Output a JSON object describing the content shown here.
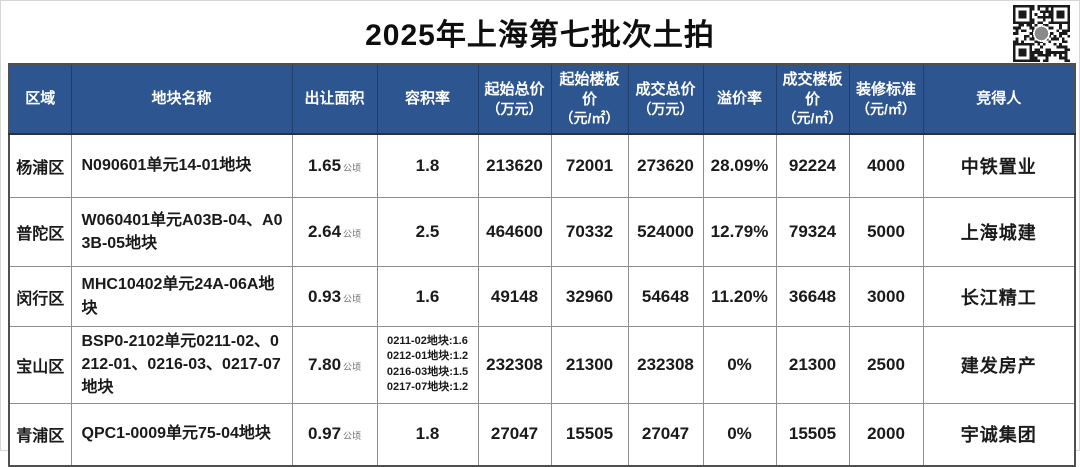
{
  "page_title": "2025年上海第七批次土拍",
  "colors": {
    "header_bg": "#2d5590",
    "header_text": "#ffffff",
    "title_text": "#0e0e0e",
    "border": "#8f8f8f"
  },
  "chart_data": {
    "type": "table",
    "title": "2025年上海第七批次土拍",
    "area_unit": "公顷",
    "columns": [
      {
        "label": "区域"
      },
      {
        "label": "地块名称"
      },
      {
        "label": "出让面积"
      },
      {
        "label": "容积率"
      },
      {
        "label": "起始总价",
        "unit": "（万元）"
      },
      {
        "label": "起始楼板价",
        "unit": "（元/㎡）"
      },
      {
        "label": "成交总价",
        "unit": "（万元）"
      },
      {
        "label": "溢价率"
      },
      {
        "label": "成交楼板价",
        "unit": "（元/㎡）"
      },
      {
        "label": "装修标准",
        "unit": "（元/㎡）"
      },
      {
        "label": "竞得人"
      }
    ],
    "rows": [
      {
        "region": "杨浦区",
        "plot_name": "N090601单元14-01地块",
        "area": "1.65",
        "plot_ratio": [
          "1.8"
        ],
        "start_total_price": "213620",
        "start_floor_price": "72001",
        "deal_total_price": "273620",
        "premium_rate": "28.09%",
        "deal_floor_price": "92224",
        "decoration_standard": "4000",
        "winner": "中铁置业"
      },
      {
        "region": "普陀区",
        "plot_name": "W060401单元A03B-04、A03B-05地块",
        "area": "2.64",
        "plot_ratio": [
          "2.5"
        ],
        "start_total_price": "464600",
        "start_floor_price": "70332",
        "deal_total_price": "524000",
        "premium_rate": "12.79%",
        "deal_floor_price": "79324",
        "decoration_standard": "5000",
        "winner": "上海城建"
      },
      {
        "region": "闵行区",
        "plot_name": "MHC10402单元24A-06A地块",
        "area": "0.93",
        "plot_ratio": [
          "1.6"
        ],
        "start_total_price": "49148",
        "start_floor_price": "32960",
        "deal_total_price": "54648",
        "premium_rate": "11.20%",
        "deal_floor_price": "36648",
        "decoration_standard": "3000",
        "winner": "长江精工"
      },
      {
        "region": "宝山区",
        "plot_name": "BSP0-2102单元0211-02、0212-01、0216-03、0217-07地块",
        "area": "7.80",
        "plot_ratio": [
          "0211-02地块:1.6",
          "0212-01地块:1.2",
          "0216-03地块:1.5",
          "0217-07地块:1.2"
        ],
        "start_total_price": "232308",
        "start_floor_price": "21300",
        "deal_total_price": "232308",
        "premium_rate": "0%",
        "deal_floor_price": "21300",
        "decoration_standard": "2500",
        "winner": "建发房产"
      },
      {
        "region": "青浦区",
        "plot_name": "QPC1-0009单元75-04地块",
        "area": "0.97",
        "plot_ratio": [
          "1.8"
        ],
        "start_total_price": "27047",
        "start_floor_price": "15505",
        "deal_total_price": "27047",
        "premium_rate": "0%",
        "deal_floor_price": "15505",
        "decoration_standard": "2000",
        "winner": "宇诚集团"
      }
    ]
  }
}
